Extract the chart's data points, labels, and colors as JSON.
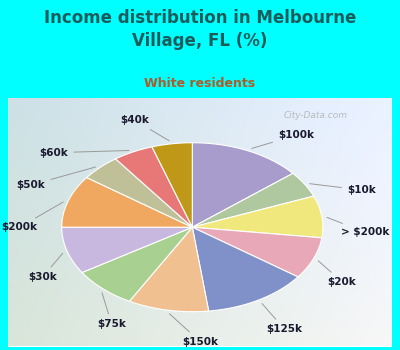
{
  "title": "Income distribution in Melbourne\nVillage, FL (%)",
  "subtitle": "White residents",
  "title_color": "#1a5c5c",
  "subtitle_color": "#b05a28",
  "background_cyan": "#00ffff",
  "watermark": "City-Data.com",
  "labels": [
    "$100k",
    "$10k",
    "> $200k",
    "$20k",
    "$125k",
    "$150k",
    "$75k",
    "$30k",
    "$200k",
    "$50k",
    "$60k",
    "$40k"
  ],
  "values": [
    14,
    5,
    8,
    8,
    13,
    10,
    8,
    9,
    10,
    5,
    5,
    5
  ],
  "colors": [
    "#a89ccc",
    "#b0c8a0",
    "#f0e87c",
    "#e8a8b8",
    "#8090c8",
    "#f0c090",
    "#a8d090",
    "#c8b8e0",
    "#f0a860",
    "#c0c098",
    "#e87878",
    "#c09818"
  ],
  "label_fontsize": 7.5,
  "title_fontsize": 12,
  "subtitle_fontsize": 9
}
